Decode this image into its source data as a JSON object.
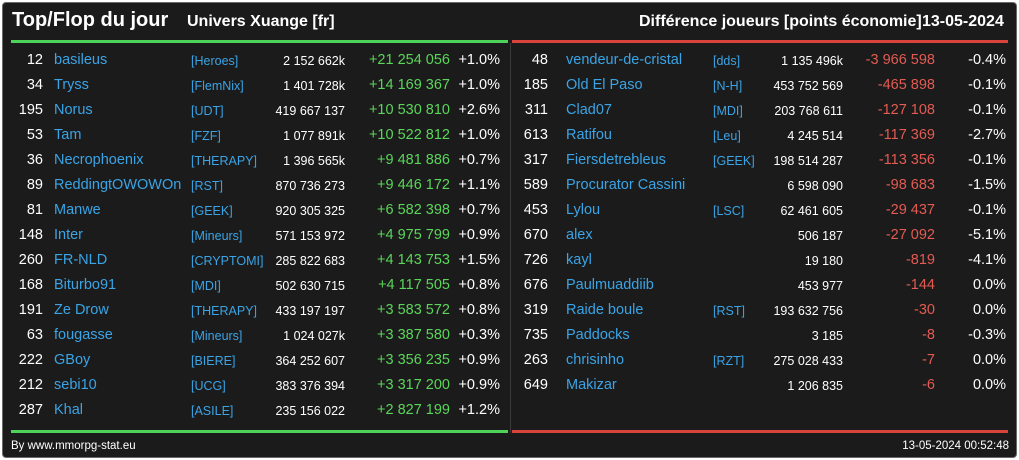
{
  "header": {
    "title": "Top/Flop du jour",
    "universe": "Univers Xuange [fr]",
    "subtitle": "Différence joueurs [points économie]",
    "date": "13-05-2024"
  },
  "colors": {
    "positive": "#5ad65a",
    "negative": "#e35b52",
    "link": "#3aa4e6",
    "top_bar": "#4ed35a",
    "flop_bar": "#d9453c"
  },
  "top": [
    {
      "rank": "12",
      "name": "basileus",
      "ally": "[Heroes]",
      "points": "2 152 662k",
      "diff": "+21 254 056",
      "pct": "+1.0%"
    },
    {
      "rank": "34",
      "name": "Tryss",
      "ally": "[FlemNix]",
      "points": "1 401 728k",
      "diff": "+14 169 367",
      "pct": "+1.0%"
    },
    {
      "rank": "195",
      "name": "Norus",
      "ally": "[UDT]",
      "points": "419 667 137",
      "diff": "+10 530 810",
      "pct": "+2.6%"
    },
    {
      "rank": "53",
      "name": "Tam",
      "ally": "[FZF]",
      "points": "1 077 891k",
      "diff": "+10 522 812",
      "pct": "+1.0%"
    },
    {
      "rank": "36",
      "name": "Necrophoenix",
      "ally": "[THERAPY]",
      "points": "1 396 565k",
      "diff": "+9 481 886",
      "pct": "+0.7%"
    },
    {
      "rank": "89",
      "name": "ReddingtOWOWOn",
      "ally": "[RST]",
      "points": "870 736 273",
      "diff": "+9 446 172",
      "pct": "+1.1%"
    },
    {
      "rank": "81",
      "name": "Manwe",
      "ally": "[GEEK]",
      "points": "920 305 325",
      "diff": "+6 582 398",
      "pct": "+0.7%"
    },
    {
      "rank": "148",
      "name": "Inter",
      "ally": "[Mineurs]",
      "points": "571 153 972",
      "diff": "+4 975 799",
      "pct": "+0.9%"
    },
    {
      "rank": "260",
      "name": "FR-NLD",
      "ally": "[CRYPTOMI]",
      "points": "285 822 683",
      "diff": "+4 143 753",
      "pct": "+1.5%"
    },
    {
      "rank": "168",
      "name": "Biturbo91",
      "ally": "[MDI]",
      "points": "502 630 715",
      "diff": "+4 117 505",
      "pct": "+0.8%"
    },
    {
      "rank": "191",
      "name": "Ze Drow",
      "ally": "[THERAPY]",
      "points": "433 197 197",
      "diff": "+3 583 572",
      "pct": "+0.8%"
    },
    {
      "rank": "63",
      "name": "fougasse",
      "ally": "[Mineurs]",
      "points": "1 024 027k",
      "diff": "+3 387 580",
      "pct": "+0.3%"
    },
    {
      "rank": "222",
      "name": "GBoy",
      "ally": "[BIERE]",
      "points": "364 252 607",
      "diff": "+3 356 235",
      "pct": "+0.9%"
    },
    {
      "rank": "212",
      "name": "sebi10",
      "ally": "[UCG]",
      "points": "383 376 394",
      "diff": "+3 317 200",
      "pct": "+0.9%"
    },
    {
      "rank": "287",
      "name": "Khal",
      "ally": "[ASILE]",
      "points": "235 156 022",
      "diff": "+2 827 199",
      "pct": "+1.2%"
    }
  ],
  "flop": [
    {
      "rank": "48",
      "name": "vendeur-de-cristal",
      "ally": "[dds]",
      "points": "1 135 496k",
      "diff": "-3 966 598",
      "pct": "-0.4%"
    },
    {
      "rank": "185",
      "name": "Old El Paso",
      "ally": "[N-H]",
      "points": "453 752 569",
      "diff": "-465 898",
      "pct": "-0.1%"
    },
    {
      "rank": "311",
      "name": "Clad07",
      "ally": "[MDI]",
      "points": "203 768 611",
      "diff": "-127 108",
      "pct": "-0.1%"
    },
    {
      "rank": "613",
      "name": "Ratifou",
      "ally": "[Leu]",
      "points": "4 245 514",
      "diff": "-117 369",
      "pct": "-2.7%"
    },
    {
      "rank": "317",
      "name": "Fiersdetrebleus",
      "ally": "[GEEK]",
      "points": "198 514 287",
      "diff": "-113 356",
      "pct": "-0.1%"
    },
    {
      "rank": "589",
      "name": "Procurator Cassini",
      "ally": "",
      "points": "6 598 090",
      "diff": "-98 683",
      "pct": "-1.5%"
    },
    {
      "rank": "453",
      "name": "Lylou",
      "ally": "[LSC]",
      "points": "62 461 605",
      "diff": "-29 437",
      "pct": "-0.1%"
    },
    {
      "rank": "670",
      "name": "alex",
      "ally": "",
      "points": "506 187",
      "diff": "-27 092",
      "pct": "-5.1%"
    },
    {
      "rank": "726",
      "name": "kayl",
      "ally": "",
      "points": "19 180",
      "diff": "-819",
      "pct": "-4.1%"
    },
    {
      "rank": "676",
      "name": "Paulmuaddiib",
      "ally": "",
      "points": "453 977",
      "diff": "-144",
      "pct": "0.0%"
    },
    {
      "rank": "319",
      "name": "Raide boule",
      "ally": "[RST]",
      "points": "193 632 756",
      "diff": "-30",
      "pct": "0.0%"
    },
    {
      "rank": "735",
      "name": "Paddocks",
      "ally": "",
      "points": "3 185",
      "diff": "-8",
      "pct": "-0.3%"
    },
    {
      "rank": "263",
      "name": "chrisinho",
      "ally": "[RZT]",
      "points": "275 028 433",
      "diff": "-7",
      "pct": "0.0%"
    },
    {
      "rank": "649",
      "name": "Makizar",
      "ally": "",
      "points": "1 206 835",
      "diff": "-6",
      "pct": "0.0%"
    }
  ],
  "footer": {
    "credit": "By www.mmorpg-stat.eu",
    "timestamp": "13-05-2024 00:52:48"
  }
}
